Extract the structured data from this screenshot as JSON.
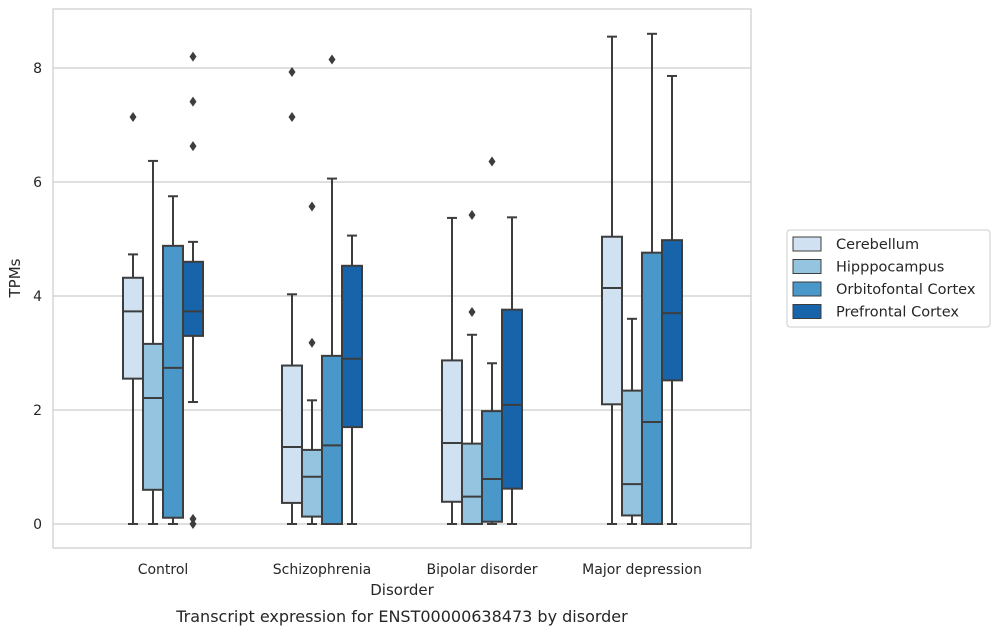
{
  "caption": "Transcript expression for ENST00000638473 by disorder",
  "chart_data": {
    "type": "box",
    "xlabel": "Disorder",
    "ylabel": "TPMs",
    "ylim": [
      -0.4,
      9.1
    ],
    "yticks": [
      0,
      2,
      4,
      6,
      8
    ],
    "grid": "horizontal",
    "legend_position": "right",
    "categories": [
      "Control",
      "Schizophrenia",
      "Bipolar disorder",
      "Major depression"
    ],
    "series": [
      {
        "name": "Cerebellum",
        "color": "#d0e1f2",
        "boxes": [
          {
            "whislo": 0,
            "q1": 2.55,
            "med": 3.73,
            "q3": 4.32,
            "whishi": 4.73,
            "fliers": [
              7.14
            ]
          },
          {
            "whislo": 0,
            "q1": 0.37,
            "med": 1.35,
            "q3": 2.78,
            "whishi": 4.03,
            "fliers": [
              7.14,
              7.93
            ]
          },
          {
            "whislo": 0,
            "q1": 0.39,
            "med": 1.42,
            "q3": 2.87,
            "whishi": 5.37,
            "fliers": []
          },
          {
            "whislo": 0,
            "q1": 2.1,
            "med": 4.14,
            "q3": 5.04,
            "whishi": 8.55,
            "fliers": []
          }
        ]
      },
      {
        "name": "Hipppocampus",
        "color": "#94c4df",
        "boxes": [
          {
            "whislo": 0,
            "q1": 0.6,
            "med": 2.21,
            "q3": 3.16,
            "whishi": 6.37,
            "fliers": []
          },
          {
            "whislo": 0,
            "q1": 0.13,
            "med": 0.83,
            "q3": 1.3,
            "whishi": 2.17,
            "fliers": [
              3.18,
              5.57
            ]
          },
          {
            "whislo": 0,
            "q1": 0,
            "med": 0.48,
            "q3": 1.41,
            "whishi": 3.32,
            "fliers": [
              3.72,
              5.42
            ]
          },
          {
            "whislo": 0,
            "q1": 0.15,
            "med": 0.7,
            "q3": 2.34,
            "whishi": 3.6,
            "fliers": []
          }
        ]
      },
      {
        "name": "Orbitofontal Cortex",
        "color": "#4a98c9",
        "boxes": [
          {
            "whislo": 0,
            "q1": 0.11,
            "med": 2.74,
            "q3": 4.88,
            "whishi": 5.75,
            "fliers": []
          },
          {
            "whislo": 0,
            "q1": 0,
            "med": 1.38,
            "q3": 2.95,
            "whishi": 6.06,
            "fliers": [
              8.15
            ]
          },
          {
            "whislo": 0,
            "q1": 0.04,
            "med": 0.79,
            "q3": 1.98,
            "whishi": 2.82,
            "fliers": [
              6.36
            ]
          },
          {
            "whislo": 0,
            "q1": 0,
            "med": 1.79,
            "q3": 4.76,
            "whishi": 8.6,
            "fliers": []
          }
        ]
      },
      {
        "name": "Prefrontal Cortex",
        "color": "#1764ab",
        "boxes": [
          {
            "whislo": 2.14,
            "q1": 3.3,
            "med": 3.73,
            "q3": 4.6,
            "whishi": 4.95,
            "fliers": [
              0,
              0.09,
              6.63,
              7.41,
              8.2
            ]
          },
          {
            "whislo": 0,
            "q1": 1.7,
            "med": 2.9,
            "q3": 4.53,
            "whishi": 5.06,
            "fliers": []
          },
          {
            "whislo": 0,
            "q1": 0.62,
            "med": 2.09,
            "q3": 3.76,
            "whishi": 5.38,
            "fliers": []
          },
          {
            "whislo": 0,
            "q1": 2.52,
            "med": 3.7,
            "q3": 4.98,
            "whishi": 7.86,
            "fliers": []
          }
        ]
      }
    ]
  }
}
